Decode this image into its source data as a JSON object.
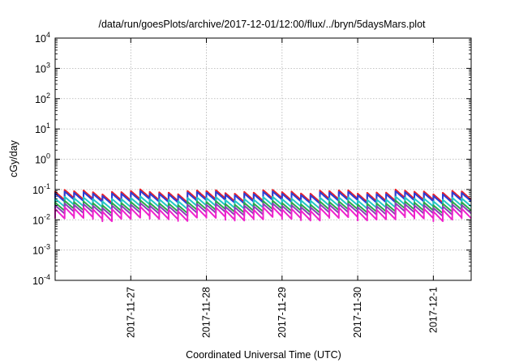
{
  "chart_data": {
    "type": "line",
    "title": "/data/run/goesPlots/archive/2017-12-01/12:00/flux/../bryn/5daysMars.plot",
    "xlabel": "Coordinated Universal Time (UTC)",
    "ylabel": "cGy/day",
    "y_scale": "log",
    "ylim": [
      0.0001,
      10000
    ],
    "y_ticks": [
      {
        "value": 0.0001,
        "base": "10",
        "exp": "-4"
      },
      {
        "value": 0.001,
        "base": "10",
        "exp": "-3"
      },
      {
        "value": 0.01,
        "base": "10",
        "exp": "-2"
      },
      {
        "value": 0.1,
        "base": "10",
        "exp": "-1"
      },
      {
        "value": 1,
        "base": "10",
        "exp": "0"
      },
      {
        "value": 10,
        "base": "10",
        "exp": "1"
      },
      {
        "value": 100,
        "base": "10",
        "exp": "2"
      },
      {
        "value": 1000,
        "base": "10",
        "exp": "3"
      },
      {
        "value": 10000,
        "base": "10",
        "exp": "4"
      }
    ],
    "xlim": [
      "2017-11-26T00:00",
      "2017-12-01T12:00"
    ],
    "x_ticks": [
      {
        "value": "2017-11-27T00:00",
        "label": "2017-11-27"
      },
      {
        "value": "2017-11-28T00:00",
        "label": "2017-11-28"
      },
      {
        "value": "2017-11-29T00:00",
        "label": "2017-11-29"
      },
      {
        "value": "2017-11-30T00:00",
        "label": "2017-11-30"
      },
      {
        "value": "2017-12-01T00:00",
        "label": "2017-12-1"
      }
    ],
    "grid": true,
    "sawtooth_period_hours": 3,
    "series": [
      {
        "color": "#e8202a",
        "peak": 0.085,
        "trough": 0.045
      },
      {
        "color": "#2b3fd6",
        "peak": 0.075,
        "trough": 0.04
      },
      {
        "color": "#22c7c7",
        "peak": 0.05,
        "trough": 0.027
      },
      {
        "color": "#2aa84a",
        "peak": 0.037,
        "trough": 0.02
      },
      {
        "color": "#8a3fb8",
        "peak": 0.03,
        "trough": 0.016
      },
      {
        "color": "#ee22cc",
        "peak": 0.023,
        "trough": 0.011
      }
    ]
  }
}
